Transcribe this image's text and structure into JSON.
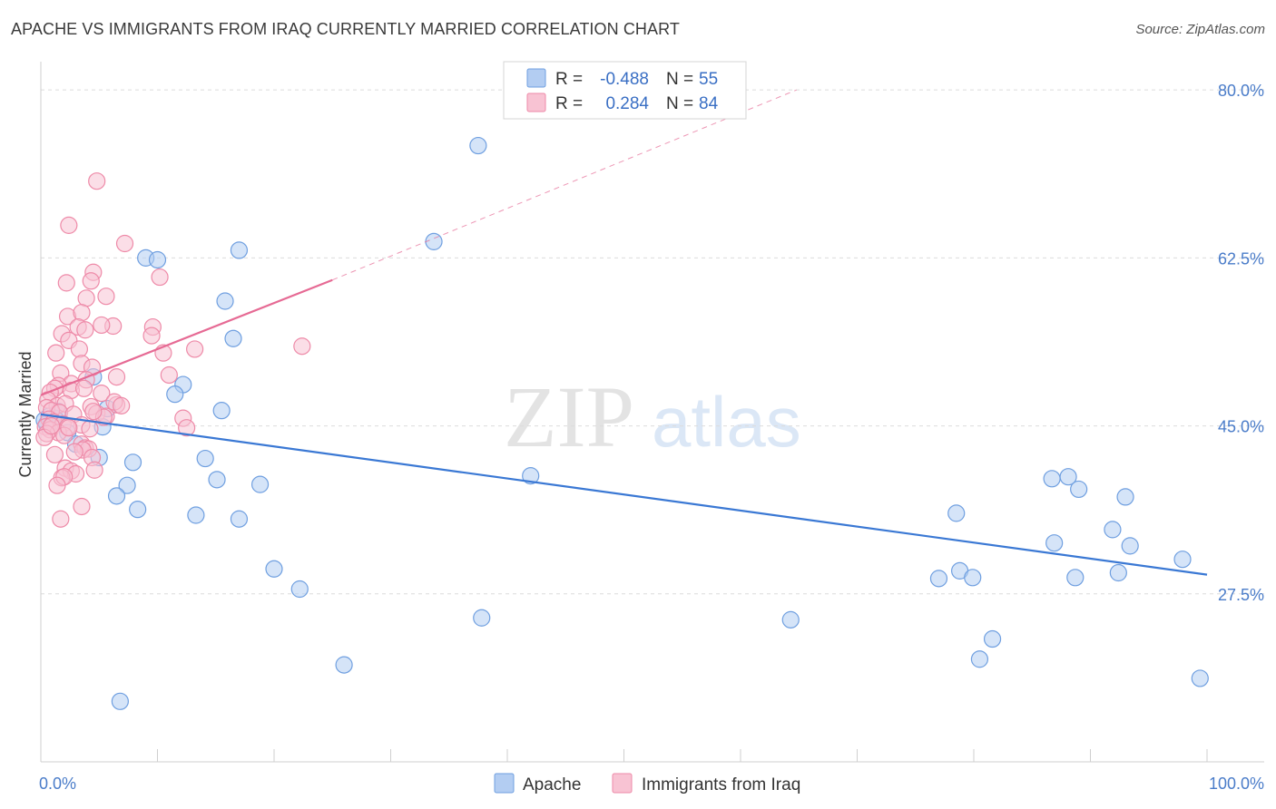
{
  "title": "APACHE VS IMMIGRANTS FROM IRAQ CURRENTLY MARRIED CORRELATION CHART",
  "source": "Source: ZipAtlas.com",
  "watermark": {
    "zip": "ZIP",
    "atlas": "atlas"
  },
  "legend": {
    "r_label": "R =",
    "n_label": "N =",
    "rows": [
      {
        "series": "Apache",
        "r": "-0.488",
        "n": "55",
        "color": "#a9c6ee"
      },
      {
        "series": "Immigrants from Iraq",
        "r": "0.284",
        "n": "84",
        "color": "#f7b6c9"
      }
    ]
  },
  "chart_data": {
    "type": "scatter",
    "title": "APACHE VS IMMIGRANTS FROM IRAQ CURRENTLY MARRIED CORRELATION CHART",
    "xlabel": "",
    "ylabel": "Currently Married",
    "xlim": [
      0,
      100
    ],
    "ylim": [
      10,
      82
    ],
    "x_tick_labels": [
      "0.0%",
      "100.0%"
    ],
    "y_ticks": [
      27.5,
      45.0,
      62.5,
      80.0
    ],
    "y_tick_labels": [
      "27.5%",
      "45.0%",
      "62.5%",
      "80.0%"
    ],
    "grid": true,
    "legend_position": "top-center",
    "series": [
      {
        "name": "Apache",
        "color": "#6f9fe0",
        "fill": "#b3cdf2",
        "trend": {
          "x": [
            0,
            100
          ],
          "y": [
            46.2,
            29.5
          ],
          "color": "#3a78d4"
        },
        "points": [
          [
            37.5,
            74.2
          ],
          [
            33.7,
            64.2
          ],
          [
            17.0,
            63.3
          ],
          [
            9.0,
            62.5
          ],
          [
            10.0,
            62.3
          ],
          [
            15.8,
            58.0
          ],
          [
            16.5,
            54.1
          ],
          [
            4.5,
            50.1
          ],
          [
            12.2,
            49.3
          ],
          [
            11.5,
            48.3
          ],
          [
            1.5,
            46.5
          ],
          [
            5.7,
            46.8
          ],
          [
            15.5,
            46.6
          ],
          [
            1.0,
            45.5
          ],
          [
            0.5,
            45.2
          ],
          [
            5.3,
            44.9
          ],
          [
            2.3,
            44.3
          ],
          [
            3.0,
            43.1
          ],
          [
            5.0,
            41.7
          ],
          [
            7.9,
            41.2
          ],
          [
            14.1,
            41.6
          ],
          [
            42.0,
            39.8
          ],
          [
            15.1,
            39.4
          ],
          [
            18.8,
            38.9
          ],
          [
            7.4,
            38.8
          ],
          [
            6.5,
            37.7
          ],
          [
            8.3,
            36.3
          ],
          [
            13.3,
            35.7
          ],
          [
            17.0,
            35.3
          ],
          [
            86.7,
            39.5
          ],
          [
            88.1,
            39.7
          ],
          [
            89.0,
            38.4
          ],
          [
            93.0,
            37.6
          ],
          [
            78.5,
            35.9
          ],
          [
            91.9,
            34.2
          ],
          [
            86.9,
            32.8
          ],
          [
            93.4,
            32.5
          ],
          [
            97.9,
            31.1
          ],
          [
            20.0,
            30.1
          ],
          [
            78.8,
            29.9
          ],
          [
            77.0,
            29.1
          ],
          [
            79.9,
            29.2
          ],
          [
            88.7,
            29.2
          ],
          [
            92.4,
            29.7
          ],
          [
            22.2,
            28.0
          ],
          [
            37.8,
            25.0
          ],
          [
            64.3,
            24.8
          ],
          [
            81.6,
            22.8
          ],
          [
            26.0,
            20.1
          ],
          [
            80.5,
            20.7
          ],
          [
            99.4,
            18.7
          ],
          [
            6.8,
            16.3
          ],
          [
            0.7,
            46.0
          ],
          [
            1.2,
            45.8
          ],
          [
            0.3,
            45.6
          ]
        ]
      },
      {
        "name": "Immigrants from Iraq",
        "color": "#ee8aa8",
        "fill": "#f8c3d3",
        "trend": {
          "x": [
            0,
            25
          ],
          "y": [
            48.2,
            60.2
          ],
          "dashed_to": [
            64.8,
            80.0
          ],
          "color": "#e66a94"
        },
        "points": [
          [
            4.8,
            70.5
          ],
          [
            2.4,
            65.9
          ],
          [
            7.2,
            64.0
          ],
          [
            4.5,
            61.0
          ],
          [
            10.2,
            60.5
          ],
          [
            4.3,
            60.1
          ],
          [
            2.2,
            59.9
          ],
          [
            5.6,
            58.5
          ],
          [
            3.9,
            58.3
          ],
          [
            2.3,
            56.4
          ],
          [
            3.5,
            56.8
          ],
          [
            6.2,
            55.4
          ],
          [
            9.6,
            55.3
          ],
          [
            3.2,
            55.3
          ],
          [
            5.2,
            55.5
          ],
          [
            3.8,
            55.0
          ],
          [
            1.8,
            54.6
          ],
          [
            9.5,
            54.4
          ],
          [
            2.4,
            53.9
          ],
          [
            13.2,
            53.0
          ],
          [
            22.4,
            53.3
          ],
          [
            3.3,
            53.0
          ],
          [
            1.3,
            52.6
          ],
          [
            10.5,
            52.6
          ],
          [
            3.5,
            51.5
          ],
          [
            4.4,
            51.1
          ],
          [
            1.7,
            50.5
          ],
          [
            11.0,
            50.3
          ],
          [
            6.5,
            50.1
          ],
          [
            3.9,
            49.8
          ],
          [
            2.6,
            49.4
          ],
          [
            1.5,
            49.2
          ],
          [
            1.2,
            48.9
          ],
          [
            0.8,
            48.5
          ],
          [
            2.6,
            48.7
          ],
          [
            3.7,
            48.9
          ],
          [
            5.2,
            48.4
          ],
          [
            0.6,
            47.7
          ],
          [
            1.4,
            47.1
          ],
          [
            2.1,
            47.3
          ],
          [
            4.3,
            47.0
          ],
          [
            6.5,
            47.2
          ],
          [
            0.5,
            46.9
          ],
          [
            0.9,
            46.6
          ],
          [
            1.6,
            46.4
          ],
          [
            2.8,
            46.2
          ],
          [
            4.8,
            46.3
          ],
          [
            5.6,
            46.0
          ],
          [
            12.2,
            45.8
          ],
          [
            0.7,
            45.7
          ],
          [
            1.1,
            45.4
          ],
          [
            1.9,
            45.2
          ],
          [
            3.5,
            45.1
          ],
          [
            0.4,
            44.9
          ],
          [
            2.3,
            44.9
          ],
          [
            4.2,
            44.7
          ],
          [
            12.5,
            44.8
          ],
          [
            0.8,
            44.6
          ],
          [
            1.5,
            44.3
          ],
          [
            0.5,
            44.2
          ],
          [
            2.0,
            44.0
          ],
          [
            0.3,
            43.8
          ],
          [
            3.5,
            43.1
          ],
          [
            3.8,
            42.7
          ],
          [
            4.1,
            42.6
          ],
          [
            3.6,
            42.5
          ],
          [
            2.9,
            42.3
          ],
          [
            1.2,
            42.0
          ],
          [
            4.4,
            41.7
          ],
          [
            2.1,
            40.6
          ],
          [
            4.6,
            40.4
          ],
          [
            2.6,
            40.3
          ],
          [
            3.0,
            40.0
          ],
          [
            1.8,
            39.6
          ],
          [
            2.0,
            39.7
          ],
          [
            1.4,
            38.8
          ],
          [
            3.5,
            36.6
          ],
          [
            1.7,
            35.3
          ],
          [
            6.3,
            47.5
          ],
          [
            6.9,
            47.1
          ],
          [
            0.9,
            45.0
          ],
          [
            2.4,
            44.8
          ],
          [
            5.4,
            45.9
          ],
          [
            4.5,
            46.5
          ]
        ]
      }
    ]
  }
}
